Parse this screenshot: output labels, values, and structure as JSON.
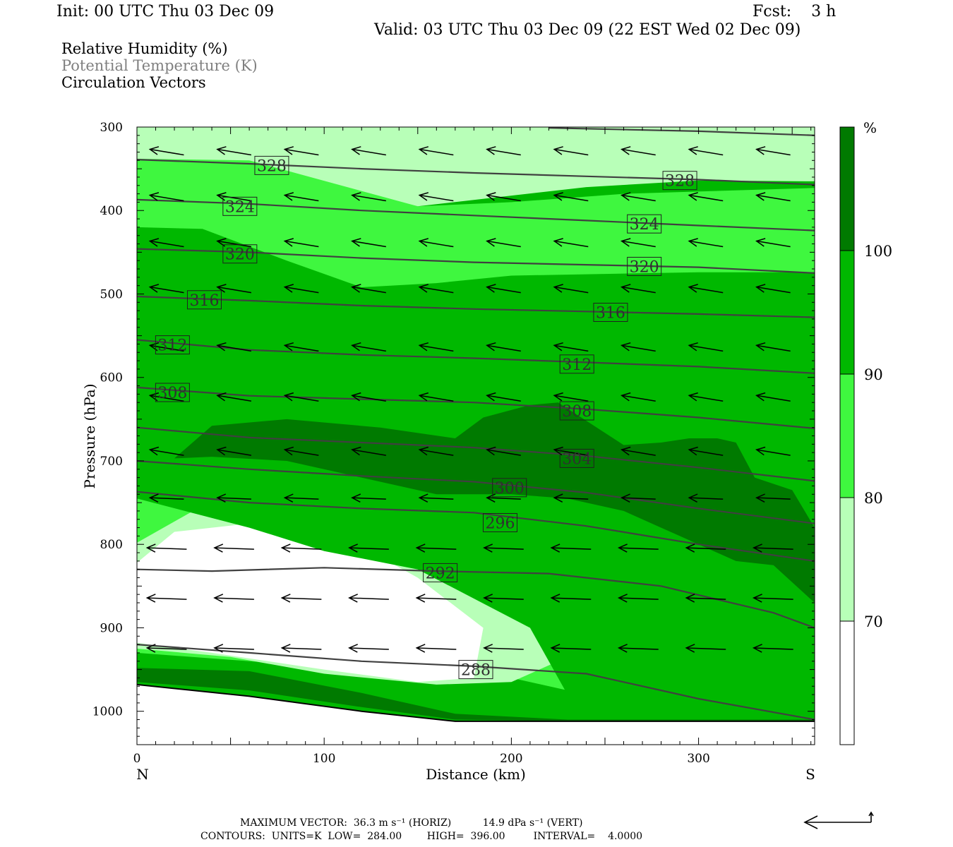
{
  "header": {
    "init": "Init: 00 UTC Thu 03 Dec 09",
    "fcst": "Fcst:    3 h",
    "valid": "Valid: 03 UTC Thu 03 Dec 09 (22 EST Wed 02 Dec 09)"
  },
  "legend": {
    "line1": "Relative Humidity (%)",
    "line2": "Potential Temperature (K)",
    "line3": "Circulation Vectors"
  },
  "colors": {
    "rh_lt70": "#ffffff",
    "rh_70_80": "#b8ffb8",
    "rh_80_90": "#3ff73f",
    "rh_90_100": "#00b800",
    "rh_ge100": "#007a00",
    "theta_line": "#404040",
    "vector": "#000000"
  },
  "footer": {
    "max_vector": "MAXIMUM VECTOR:  36.3 m s⁻¹ (HORIZ)          14.9 dPa s⁻¹ (VERT)",
    "contours": "CONTOURS:  UNITS=K  LOW=  284.00        HIGH=  396.00         INTERVAL=    4.0000"
  },
  "chart_data": {
    "type": "cross-section",
    "xlabel": "Distance (km)",
    "ylabel": "Pressure (hPa)",
    "xlim": [
      0,
      362
    ],
    "ylim": [
      1040,
      300
    ],
    "x_ticks": [
      "0",
      "100",
      "200",
      "300"
    ],
    "y_ticks": [
      "300",
      "400",
      "500",
      "600",
      "700",
      "800",
      "900",
      "1000"
    ],
    "x_end_labels": {
      "left": "N",
      "right": "S"
    },
    "colorbar": {
      "unit": "%",
      "levels": [
        "70",
        "80",
        "90",
        "100"
      ],
      "bins": [
        "<70",
        "70-80",
        "80-90",
        "90-100",
        ">=100"
      ]
    },
    "theta_contours": [
      {
        "value": "288",
        "x": [
          0,
          60,
          120,
          180,
          240,
          300,
          362
        ],
        "p": [
          920,
          930,
          940,
          946,
          955,
          985,
          1010
        ]
      },
      {
        "value": "292",
        "x": [
          0,
          40,
          100,
          160,
          220,
          280,
          340,
          362
        ],
        "p": [
          830,
          832,
          828,
          832,
          835,
          850,
          882,
          900
        ]
      },
      {
        "value": "296",
        "x": [
          0,
          60,
          120,
          180,
          240,
          300,
          362
        ],
        "p": [
          737,
          750,
          757,
          762,
          778,
          800,
          820
        ]
      },
      {
        "value": "300",
        "x": [
          0,
          60,
          120,
          180,
          240,
          300,
          362
        ],
        "p": [
          700,
          710,
          718,
          725,
          738,
          757,
          775
        ]
      },
      {
        "value": "304",
        "x": [
          0,
          60,
          120,
          180,
          240,
          300,
          362
        ],
        "p": [
          660,
          672,
          678,
          684,
          694,
          708,
          724
        ]
      },
      {
        "value": "308",
        "x": [
          0,
          60,
          120,
          180,
          240,
          300,
          362
        ],
        "p": [
          612,
          622,
          626,
          630,
          638,
          648,
          661
        ]
      },
      {
        "value": "312",
        "x": [
          0,
          60,
          120,
          180,
          240,
          300,
          362
        ],
        "p": [
          555,
          567,
          573,
          577,
          582,
          587,
          595
        ]
      },
      {
        "value": "316",
        "x": [
          0,
          60,
          120,
          180,
          240,
          300,
          362
        ],
        "p": [
          503,
          508,
          514,
          518,
          521,
          524,
          528
        ]
      },
      {
        "value": "320",
        "x": [
          0,
          60,
          120,
          180,
          240,
          300,
          362
        ],
        "p": [
          446,
          450,
          457,
          462,
          465,
          468,
          475
        ]
      },
      {
        "value": "324",
        "x": [
          0,
          60,
          120,
          180,
          240,
          300,
          362
        ],
        "p": [
          387,
          392,
          400,
          406,
          412,
          418,
          424
        ]
      },
      {
        "value": "328",
        "x": [
          0,
          60,
          120,
          180,
          240,
          300,
          362
        ],
        "p": [
          339,
          344,
          350,
          355,
          359,
          363,
          369
        ]
      },
      {
        "value": "",
        "x": [
          220,
          300,
          362
        ],
        "p": [
          301,
          305,
          310
        ]
      }
    ],
    "contour_labels": [
      {
        "text": "328",
        "x": 72,
        "p": 346
      },
      {
        "text": "328",
        "x": 290,
        "p": 364
      },
      {
        "text": "324",
        "x": 55,
        "p": 395
      },
      {
        "text": "324",
        "x": 271,
        "p": 416
      },
      {
        "text": "320",
        "x": 55,
        "p": 452
      },
      {
        "text": "320",
        "x": 271,
        "p": 467
      },
      {
        "text": "316",
        "x": 36,
        "p": 507
      },
      {
        "text": "316",
        "x": 253,
        "p": 522
      },
      {
        "text": "312",
        "x": 19,
        "p": 561
      },
      {
        "text": "312",
        "x": 235,
        "p": 584
      },
      {
        "text": "308",
        "x": 19,
        "p": 618
      },
      {
        "text": "308",
        "x": 235,
        "p": 640
      },
      {
        "text": "304",
        "x": 235,
        "p": 697
      },
      {
        "text": "300",
        "x": 199,
        "p": 732
      },
      {
        "text": "296",
        "x": 194,
        "p": 774
      },
      {
        "text": "292",
        "x": 162,
        "p": 834
      },
      {
        "text": "288",
        "x": 181,
        "p": 950
      }
    ],
    "rh_regions": [
      {
        "bin": "70-80",
        "x": [
          0,
          60,
          150,
          240,
          300,
          362,
          362,
          300,
          0
        ],
        "p": [
          338,
          340,
          395,
          372,
          364,
          365,
          300,
          300,
          300
        ]
      },
      {
        "bin": "70-80",
        "x": [
          0,
          30,
          80,
          130,
          170,
          210,
          230,
          200,
          160,
          100,
          50,
          0
        ],
        "p": [
          798,
          760,
          745,
          758,
          790,
          860,
          935,
          965,
          968,
          955,
          935,
          925
        ]
      },
      {
        "bin": "80-90",
        "x": [
          0,
          40,
          90,
          150,
          200,
          260,
          362,
          362,
          320,
          260,
          200,
          150,
          100,
          60,
          0
        ],
        "p": [
          312,
          330,
          354,
          395,
          390,
          380,
          373,
          1010,
          1010,
          990,
          960,
          955,
          947,
          940,
          930
        ]
      },
      {
        "bin": "<70",
        "x": [
          0,
          20,
          60,
          110,
          150,
          185,
          180,
          150,
          100,
          40,
          0
        ],
        "p": [
          822,
          785,
          775,
          790,
          840,
          900,
          960,
          965,
          950,
          930,
          918
        ]
      },
      {
        "bin": "90-100",
        "x": [
          0,
          35,
          80,
          120,
          160,
          200,
          300,
          362,
          362,
          320,
          260,
          230,
          210,
          150,
          100,
          60,
          0
        ],
        "p": [
          420,
          422,
          460,
          492,
          487,
          478,
          474,
          474,
          1010,
          1010,
          1008,
          980,
          900,
          830,
          808,
          780,
          745
        ]
      },
      {
        "bin": ">=100",
        "x": [
          40,
          80,
          130,
          170,
          185,
          210,
          225,
          260,
          280,
          295,
          310,
          320,
          330,
          350,
          362,
          362,
          340,
          320,
          300,
          280,
          260,
          230,
          200,
          160,
          120,
          80,
          40,
          20
        ],
        "p": [
          658,
          650,
          660,
          673,
          648,
          633,
          630,
          681,
          678,
          673,
          673,
          678,
          720,
          735,
          780,
          870,
          825,
          820,
          800,
          780,
          760,
          745,
          740,
          740,
          720,
          700,
          695,
          697
        ]
      },
      {
        "bin": ">=100",
        "x": [
          0,
          60,
          120,
          170,
          230,
          362,
          362,
          230,
          170,
          120,
          60,
          0
        ],
        "p": [
          948,
          952,
          978,
          1003,
          1010,
          1010,
          1012,
          1012,
          1010,
          995,
          975,
          965
        ]
      }
    ],
    "terrain": {
      "x": [
        0,
        60,
        120,
        170,
        200,
        362
      ],
      "p": [
        968,
        982,
        1000,
        1012,
        1012,
        1012
      ]
    },
    "vectors": {
      "columns_km": [
        16,
        52,
        88,
        124,
        160,
        196,
        232,
        268,
        304,
        340
      ],
      "levels_hpa": [
        330,
        385,
        440,
        495,
        565,
        625,
        690,
        745,
        805,
        865,
        925
      ]
    }
  }
}
